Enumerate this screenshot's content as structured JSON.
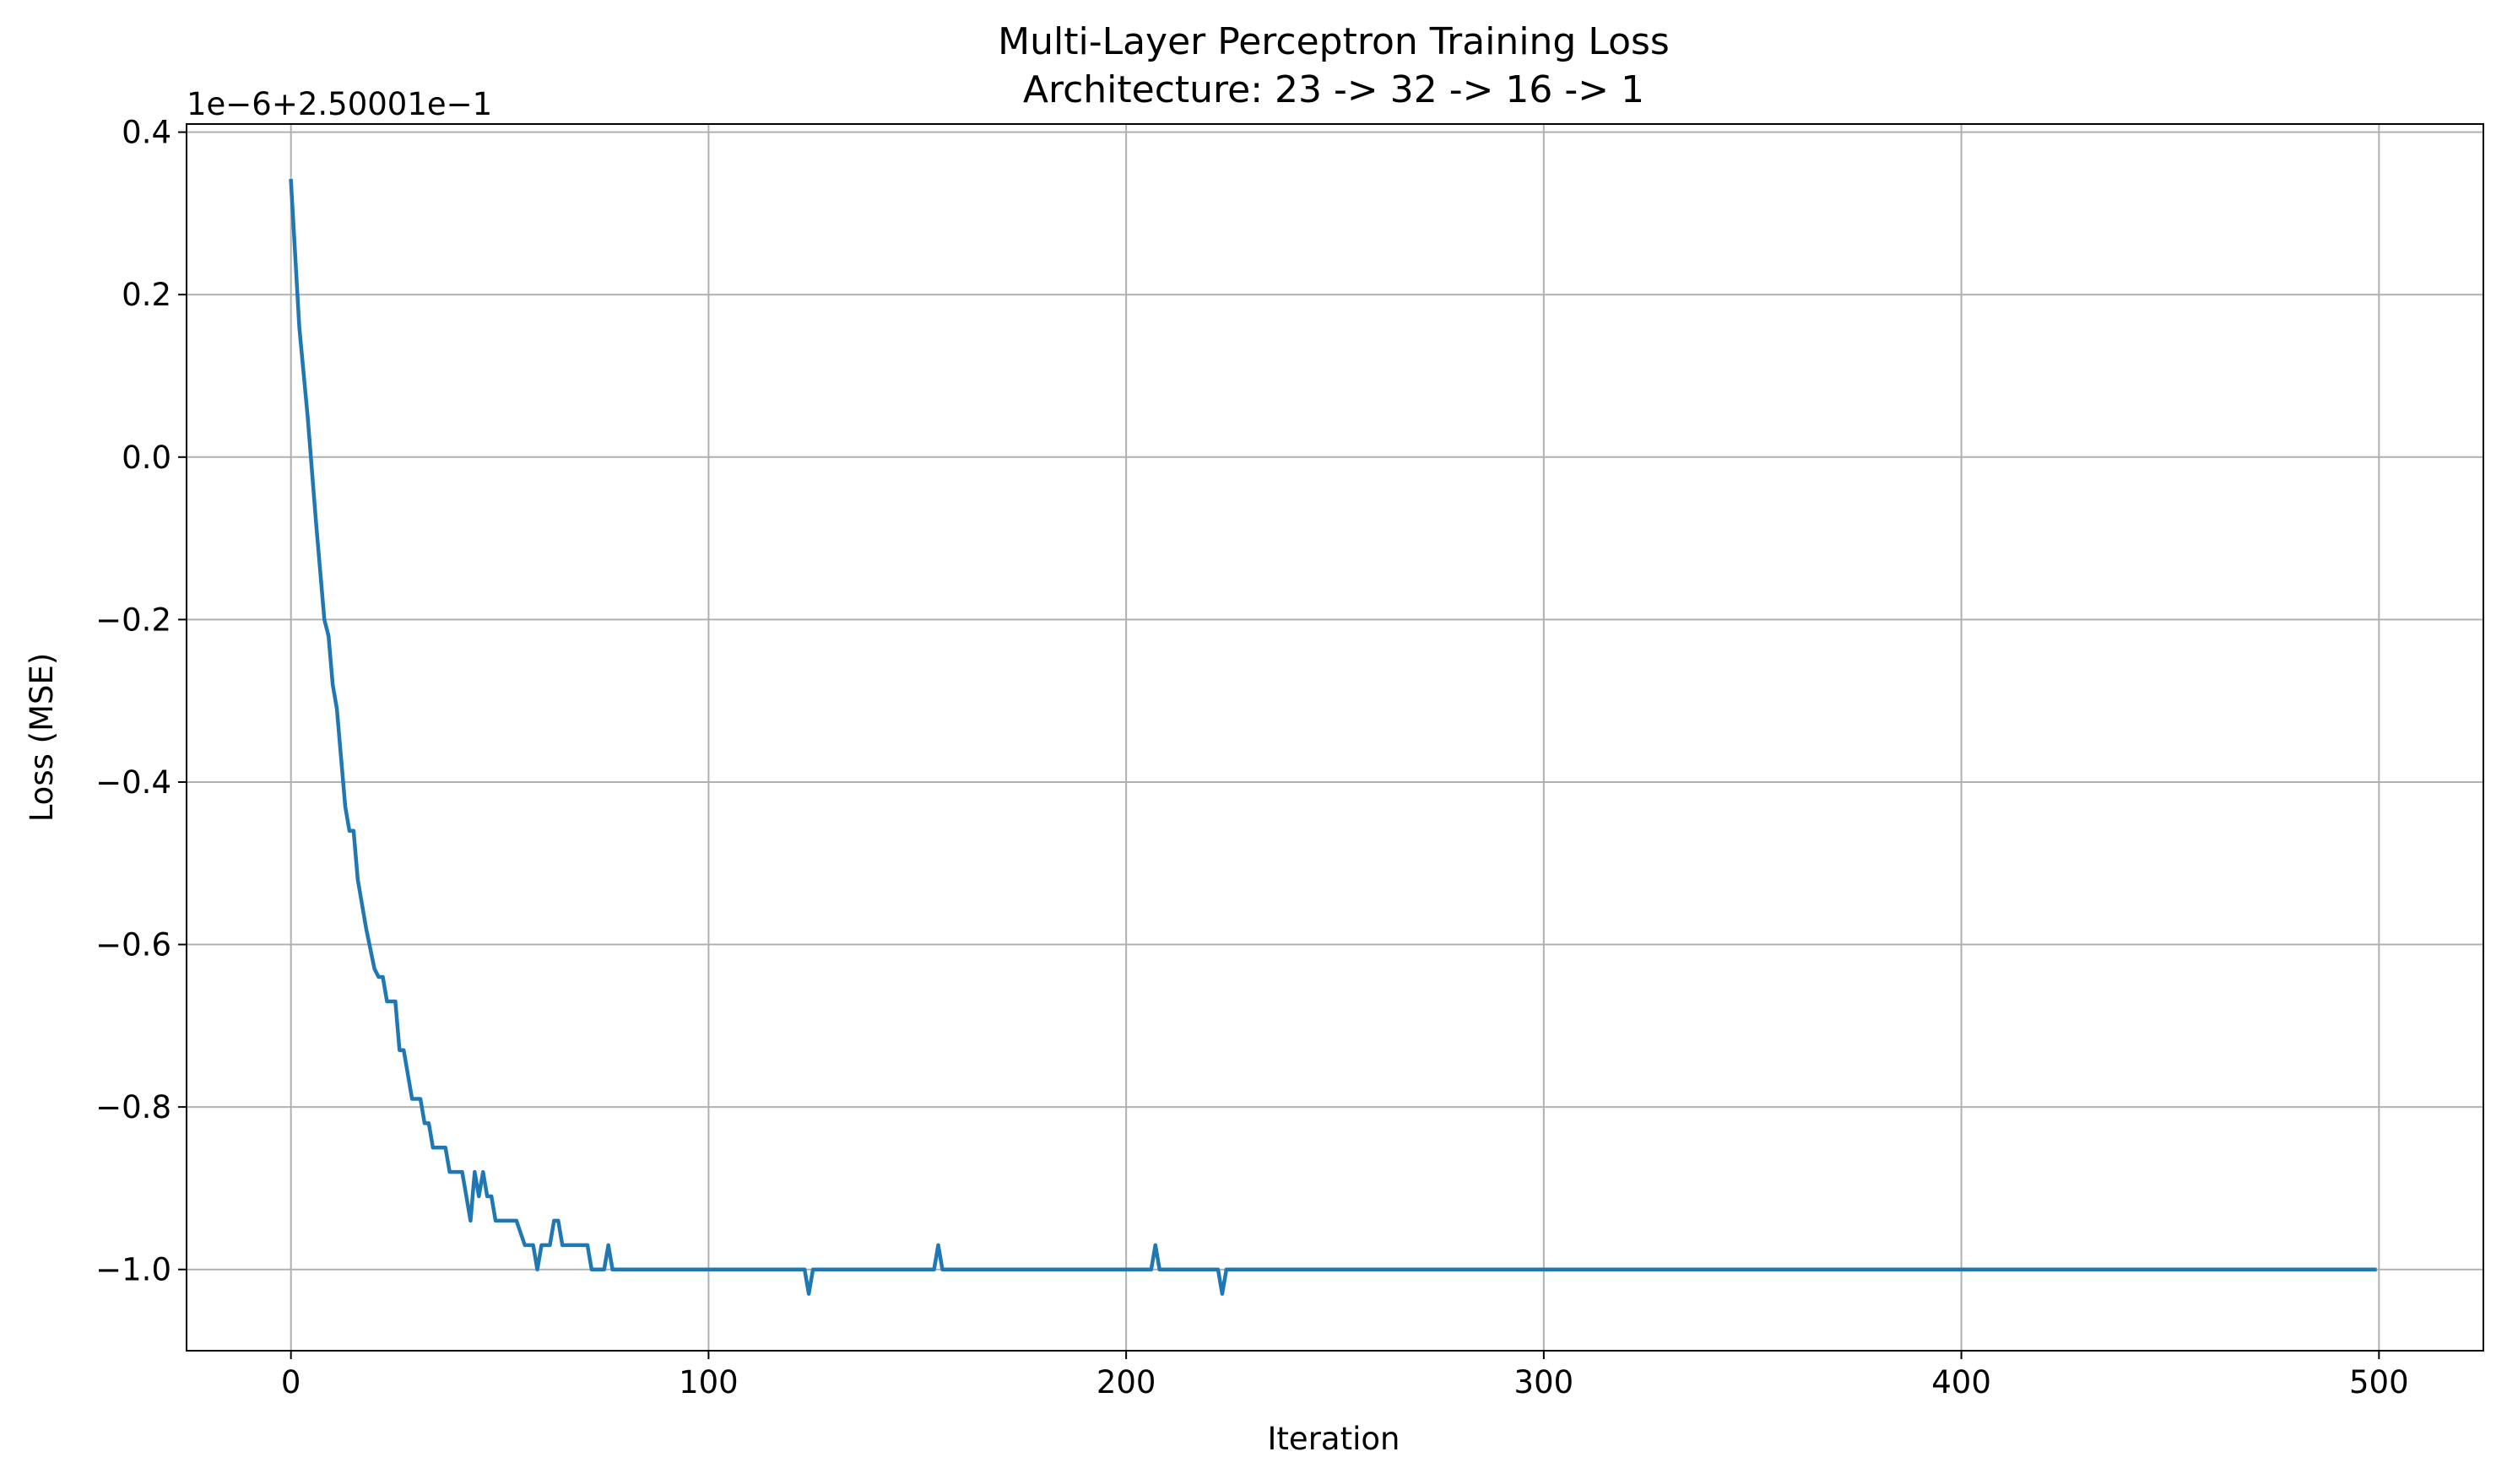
{
  "chart_data": {
    "type": "line",
    "title": "Multi-Layer Perceptron Training Loss",
    "subtitle": "Architecture: 23 -> 32 -> 16 -> 1",
    "xlabel": "Iteration",
    "ylabel": "Loss (MSE)",
    "y_offset_label": "1e−6+2.50001e−1",
    "xlim": [
      -25,
      525
    ],
    "ylim": [
      -1.1,
      0.41
    ],
    "grid": true,
    "x_ticks": [
      0,
      100,
      200,
      300,
      400,
      500
    ],
    "x_tick_labels": [
      "0",
      "100",
      "200",
      "300",
      "400",
      "500"
    ],
    "y_ticks": [
      0.4,
      0.2,
      0.0,
      -0.2,
      -0.4,
      -0.6,
      -0.8,
      -1.0
    ],
    "y_tick_labels": [
      "0.4",
      "0.2",
      "0.0",
      "−0.2",
      "−0.4",
      "−0.6",
      "−0.8",
      "−1.0"
    ],
    "series": [
      {
        "color": "#1f77b4",
        "points": [
          [
            0,
            0.34
          ],
          [
            2,
            0.16
          ],
          [
            4,
            0.05
          ],
          [
            6,
            -0.08
          ],
          [
            8,
            -0.2
          ],
          [
            9,
            -0.22
          ],
          [
            10,
            -0.28
          ],
          [
            11,
            -0.31
          ],
          [
            12,
            -0.37
          ],
          [
            13,
            -0.43
          ],
          [
            14,
            -0.46
          ],
          [
            15,
            -0.46
          ],
          [
            16,
            -0.52
          ],
          [
            18,
            -0.58
          ],
          [
            20,
            -0.63
          ],
          [
            21,
            -0.64
          ],
          [
            22,
            -0.64
          ],
          [
            23,
            -0.67
          ],
          [
            24,
            -0.67
          ],
          [
            25,
            -0.67
          ],
          [
            26,
            -0.73
          ],
          [
            27,
            -0.73
          ],
          [
            28,
            -0.76
          ],
          [
            29,
            -0.79
          ],
          [
            30,
            -0.79
          ],
          [
            31,
            -0.79
          ],
          [
            32,
            -0.82
          ],
          [
            33,
            -0.82
          ],
          [
            34,
            -0.85
          ],
          [
            35,
            -0.85
          ],
          [
            36,
            -0.85
          ],
          [
            37,
            -0.85
          ],
          [
            38,
            -0.88
          ],
          [
            39,
            -0.88
          ],
          [
            40,
            -0.88
          ],
          [
            41,
            -0.88
          ],
          [
            43,
            -0.94
          ],
          [
            44,
            -0.88
          ],
          [
            45,
            -0.91
          ],
          [
            46,
            -0.88
          ],
          [
            47,
            -0.91
          ],
          [
            48,
            -0.91
          ],
          [
            49,
            -0.94
          ],
          [
            50,
            -0.94
          ],
          [
            52,
            -0.94
          ],
          [
            54,
            -0.94
          ],
          [
            56,
            -0.97
          ],
          [
            58,
            -0.97
          ],
          [
            59,
            -1.0
          ],
          [
            60,
            -0.97
          ],
          [
            62,
            -0.97
          ],
          [
            63,
            -0.94
          ],
          [
            64,
            -0.94
          ],
          [
            65,
            -0.97
          ],
          [
            67,
            -0.97
          ],
          [
            69,
            -0.97
          ],
          [
            71,
            -0.97
          ],
          [
            72,
            -1.0
          ],
          [
            74,
            -1.0
          ],
          [
            75,
            -1.0
          ],
          [
            76,
            -0.97
          ],
          [
            77,
            -1.0
          ],
          [
            100,
            -1.0
          ],
          [
            123,
            -1.0
          ],
          [
            124,
            -1.03
          ],
          [
            125,
            -1.0
          ],
          [
            154,
            -1.0
          ],
          [
            155,
            -0.97
          ],
          [
            156,
            -1.0
          ],
          [
            206,
            -1.0
          ],
          [
            207,
            -0.97
          ],
          [
            208,
            -1.0
          ],
          [
            222,
            -1.0
          ],
          [
            223,
            -1.03
          ],
          [
            224,
            -1.0
          ],
          [
            300,
            -1.0
          ],
          [
            400,
            -1.0
          ],
          [
            499,
            -1.0
          ]
        ]
      }
    ]
  }
}
